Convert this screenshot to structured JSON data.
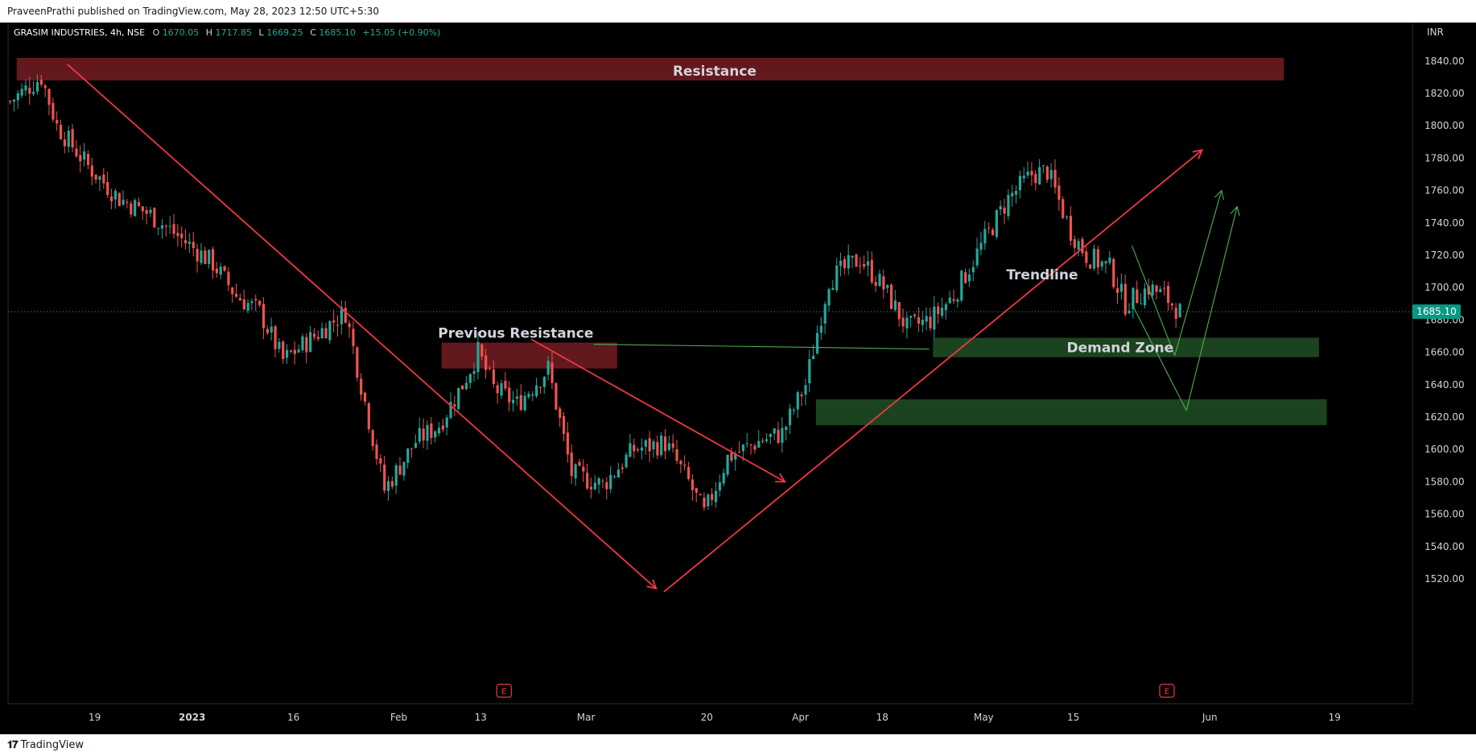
{
  "header": {
    "published_text": "PraveenPrathi published on TradingView.com, May 28, 2023 12:50 UTC+5:30"
  },
  "legend": {
    "symbol": "GRASIM INDUSTRIES, 4h, NSE",
    "open_label": "O",
    "open_value": "1670.05",
    "high_label": "H",
    "high_value": "1717.85",
    "low_label": "L",
    "low_value": "1669.25",
    "close_label": "C",
    "close_value": "1685.10",
    "change": "+15.05 (+0.90%)"
  },
  "currency": "INR",
  "footer": {
    "brand": "TradingView",
    "logo_icon": "tradingview-logo-icon"
  },
  "colors": {
    "background": "#000000",
    "up": "#26a69a",
    "down": "#ef5350",
    "drawing_line": "#f23645",
    "resistance_zone": "#6b1a1f",
    "demand_zone": "#1f4a22",
    "green_line": "#4caf50",
    "price_tag": "#089981"
  },
  "chart_data": {
    "type": "candlestick",
    "timeframe": "4h",
    "ylim": [
      1512,
      1850
    ],
    "y_ticks": [
      1520,
      1540,
      1560,
      1580,
      1600,
      1620,
      1640,
      1660,
      1680,
      1700,
      1720,
      1740,
      1760,
      1780,
      1800,
      1820,
      1840
    ],
    "y_tick_labels": [
      "1520.00",
      "1540.00",
      "1560.00",
      "1580.00",
      "1600.00",
      "1620.00",
      "1640.00",
      "1660.00",
      "1680.00",
      "1700.00",
      "1720.00",
      "1740.00",
      "1760.00",
      "1780.00",
      "1800.00",
      "1820.00",
      "1840.00"
    ],
    "x_tick_labels": [
      "19",
      "2023",
      "16",
      "Feb",
      "13",
      "Mar",
      "20",
      "Apr",
      "18",
      "May",
      "15",
      "Jun",
      "19"
    ],
    "x_tick_bars": [
      22,
      47,
      73,
      100,
      121,
      148,
      179,
      203,
      224,
      250,
      273,
      308,
      340
    ],
    "last_price": 1685.1,
    "last_price_label": "1685.10",
    "bars_total": 360,
    "last_bar": 300,
    "price_keypoints": [
      [
        0,
        1815
      ],
      [
        8,
        1830
      ],
      [
        12,
        1800
      ],
      [
        20,
        1775
      ],
      [
        28,
        1755
      ],
      [
        36,
        1745
      ],
      [
        44,
        1730
      ],
      [
        52,
        1715
      ],
      [
        58,
        1695
      ],
      [
        64,
        1685
      ],
      [
        70,
        1655
      ],
      [
        78,
        1670
      ],
      [
        86,
        1685
      ],
      [
        90,
        1640
      ],
      [
        96,
        1575
      ],
      [
        104,
        1605
      ],
      [
        110,
        1615
      ],
      [
        116,
        1640
      ],
      [
        120,
        1660
      ],
      [
        124,
        1638
      ],
      [
        130,
        1628
      ],
      [
        138,
        1650
      ],
      [
        144,
        1585
      ],
      [
        152,
        1578
      ],
      [
        160,
        1600
      ],
      [
        168,
        1604
      ],
      [
        174,
        1580
      ],
      [
        178,
        1560
      ],
      [
        184,
        1595
      ],
      [
        192,
        1605
      ],
      [
        198,
        1610
      ],
      [
        204,
        1640
      ],
      [
        210,
        1705
      ],
      [
        218,
        1718
      ],
      [
        224,
        1700
      ],
      [
        230,
        1675
      ],
      [
        236,
        1680
      ],
      [
        242,
        1695
      ],
      [
        250,
        1730
      ],
      [
        256,
        1755
      ],
      [
        262,
        1770
      ],
      [
        266,
        1772
      ],
      [
        272,
        1735
      ],
      [
        276,
        1720
      ],
      [
        282,
        1712
      ],
      [
        286,
        1690
      ],
      [
        292,
        1700
      ],
      [
        296,
        1695
      ],
      [
        300,
        1685
      ]
    ],
    "annotations": [
      {
        "type": "zone",
        "label": "Resistance",
        "price_top": 1842,
        "price_bottom": 1828,
        "bar_start": 2,
        "bar_end": 327,
        "color": "resistance"
      },
      {
        "type": "zone",
        "label": "Previous Resistance",
        "price_top": 1666,
        "price_bottom": 1650,
        "bar_start": 111,
        "bar_end": 156,
        "color": "resistance"
      },
      {
        "type": "zone",
        "label": "Demand Zone",
        "price_top": 1669,
        "price_bottom": 1657,
        "bar_start": 237,
        "bar_end": 336,
        "color": "demand"
      },
      {
        "type": "zone",
        "label": "",
        "price_top": 1631,
        "price_bottom": 1615,
        "bar_start": 207,
        "bar_end": 338,
        "color": "demand"
      }
    ],
    "text_labels": [
      {
        "text": "Trendline",
        "bar": 265,
        "price": 1708
      },
      {
        "text": "Previous Resistance",
        "bar": 130,
        "price": 1672
      },
      {
        "text": "Demand Zone",
        "bar": 285,
        "price": 1663
      },
      {
        "text": "Resistance",
        "bar": 181,
        "price": 1834
      }
    ],
    "trend_lines": [
      {
        "from": [
          15,
          1838
        ],
        "to": [
          166,
          1514
        ],
        "color": "red",
        "arrow": true
      },
      {
        "from": [
          134,
          1668
        ],
        "to": [
          199,
          1580
        ],
        "color": "red",
        "arrow": true
      },
      {
        "from": [
          168,
          1512
        ],
        "to": [
          306,
          1785
        ],
        "color": "red",
        "arrow": true
      },
      {
        "from": [
          150,
          1665
        ],
        "to": [
          236,
          1662
        ],
        "color": "green",
        "arrow": false
      },
      {
        "from": [
          288,
          1726
        ],
        "to": [
          299,
          1658
        ],
        "color": "green",
        "arrow": false
      },
      {
        "from": [
          299,
          1658
        ],
        "to": [
          311,
          1760
        ],
        "color": "green",
        "arrow": true
      },
      {
        "from": [
          288,
          1690
        ],
        "to": [
          302,
          1624
        ],
        "color": "green",
        "arrow": false
      },
      {
        "from": [
          302,
          1624
        ],
        "to": [
          315,
          1750
        ],
        "color": "green",
        "arrow": true
      }
    ],
    "earnings_markers": [
      {
        "bar": 127,
        "label": "E"
      },
      {
        "bar": 297,
        "label": "E"
      }
    ]
  }
}
